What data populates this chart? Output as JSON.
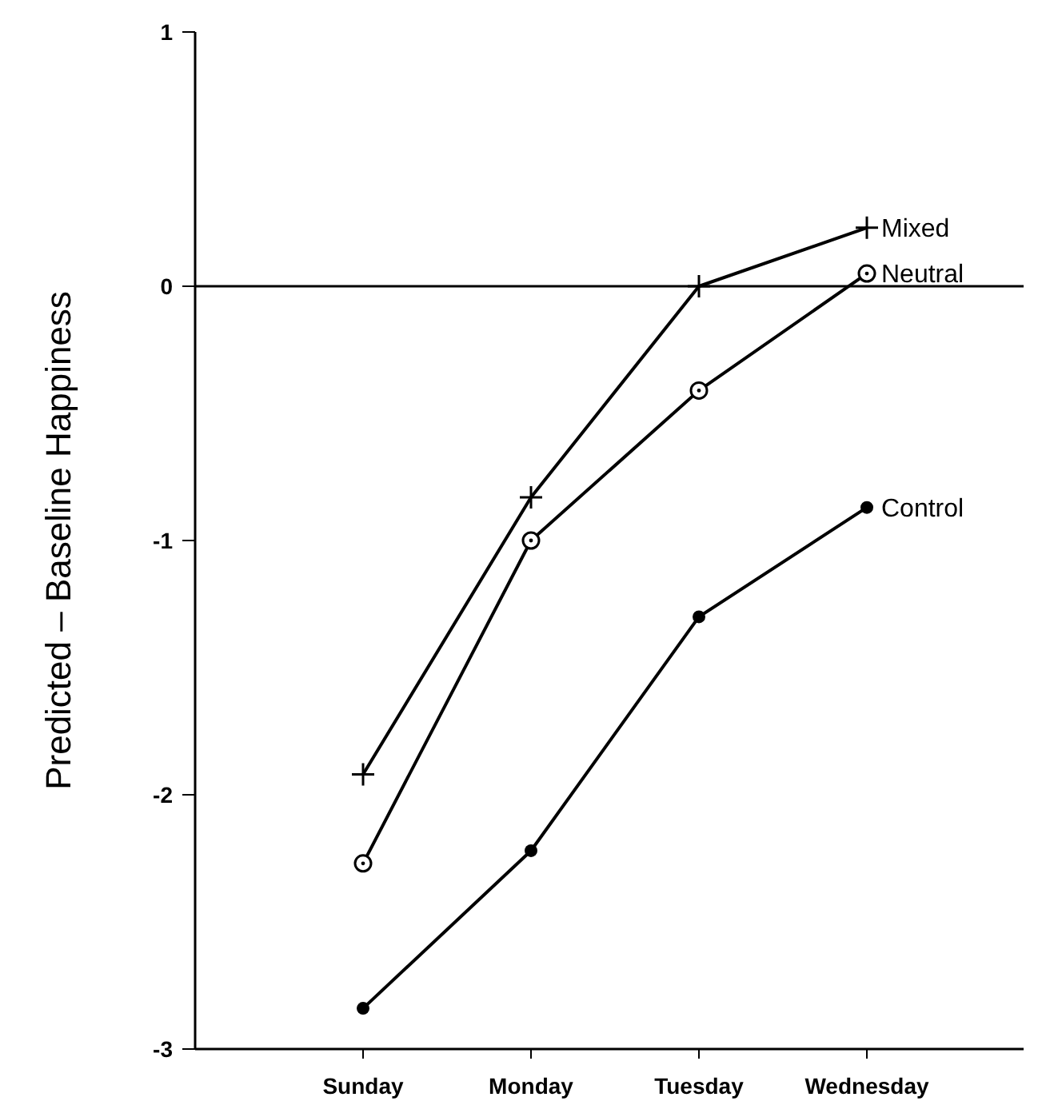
{
  "chart_data": {
    "type": "line",
    "ylabel": "Predicted – Baseline Happiness",
    "categories": [
      "Sunday",
      "Monday",
      "Tuesday",
      "Wednesday"
    ],
    "ylim": [
      -3,
      1
    ],
    "yticks": [
      -3,
      -2,
      -1,
      0,
      1
    ],
    "ref_lines": [
      {
        "axis": "y",
        "value": 0
      }
    ],
    "series": [
      {
        "name": "Mixed",
        "color": "#000000",
        "marker": "cross",
        "values": [
          -1.92,
          -0.83,
          0,
          0.23
        ]
      },
      {
        "name": "Neutral",
        "color": "#000000",
        "marker": "circle",
        "values": [
          -2.27,
          -1.0,
          -0.41,
          0.05
        ]
      },
      {
        "name": "Control",
        "color": "#000000",
        "marker": "filled-circle",
        "values": [
          -2.84,
          -2.22,
          -1.3,
          -0.87
        ]
      }
    ]
  }
}
